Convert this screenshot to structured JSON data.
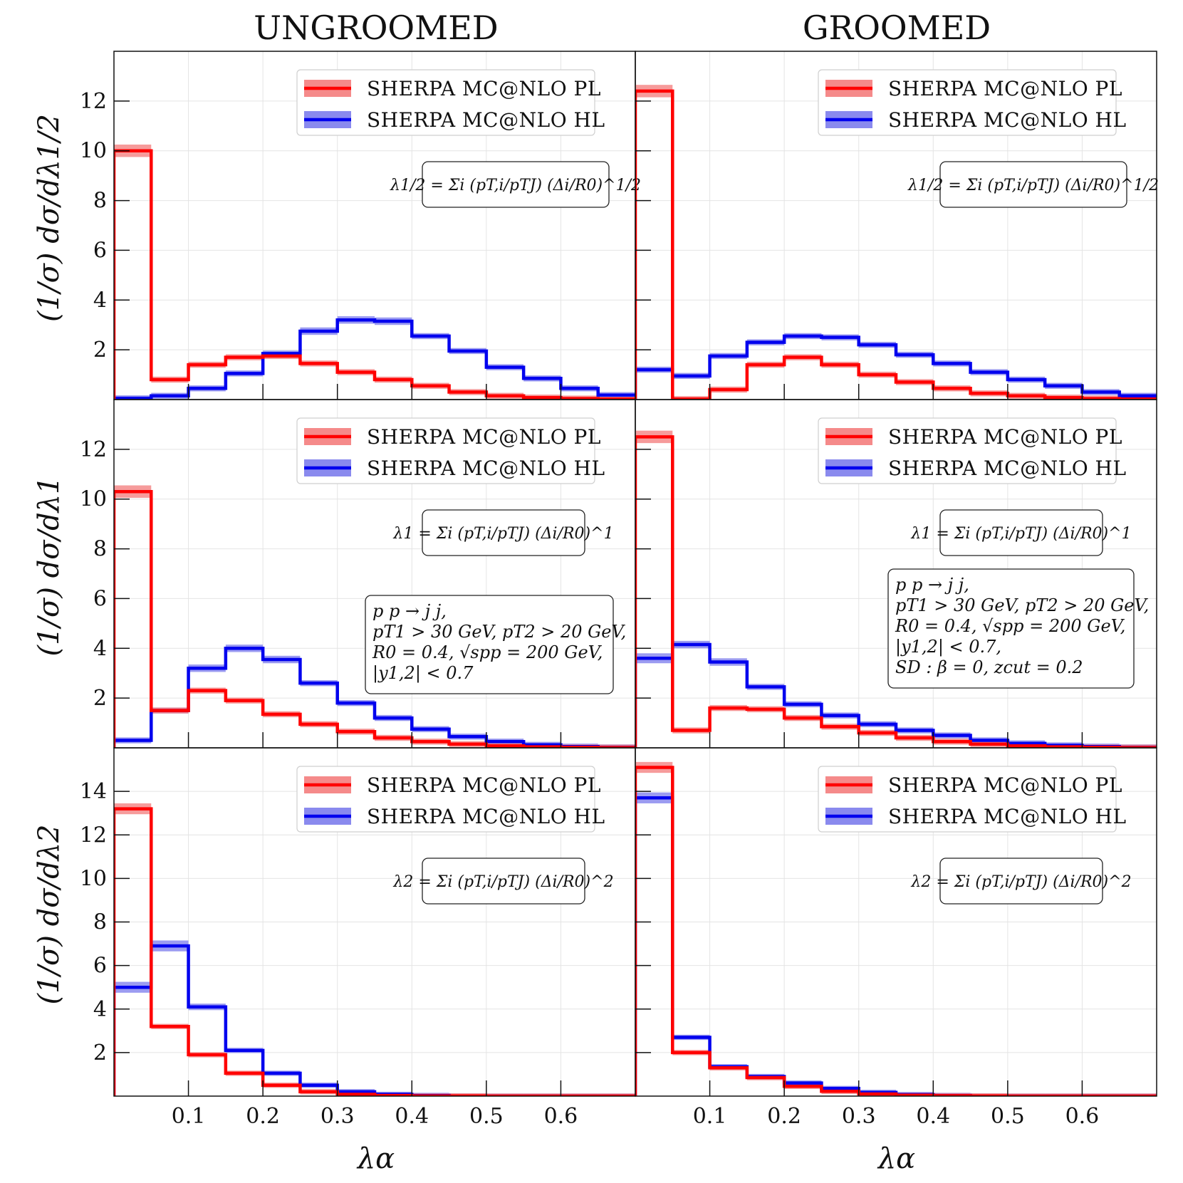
{
  "figure": {
    "column_titles": [
      "UNGROOMED",
      "GROOMED"
    ],
    "x_label": "λα",
    "row_y_labels": [
      "(1/σ) dσ/dλ1/2",
      "(1/σ) dσ/dλ1",
      "(1/σ) dσ/dλ2"
    ],
    "legend": [
      "SHERPA MC@NLO PL",
      "SHERPA MC@NLO HL"
    ],
    "formulas": [
      "λ1/2 = Σi (pT,i/pTJ) (Δi/R0)^1/2",
      "λ1 = Σi (pT,i/pTJ) (Δi/R0)^1",
      "λ2 = Σi (pT,i/pTJ) (Δi/R0)^2"
    ],
    "ungroomed_info": [
      "p p → j j,",
      "pT1 > 30 GeV,  pT2 > 20 GeV,",
      "R0 = 0.4, √spp = 200 GeV,",
      "|y1,2| < 0.7"
    ],
    "groomed_info": [
      "p p → j j,",
      "pT1 > 30 GeV,  pT2 > 20 GeV,",
      "R0 = 0.4, √spp = 200 GeV,",
      "|y1,2| < 0.7,",
      "SD : β = 0, zcut = 0.2"
    ],
    "colors": {
      "PL": "#ff0000",
      "HL": "#0000ee",
      "PL_band": "#f58a8a",
      "HL_band": "#8a8aee"
    }
  },
  "chart_data": [
    {
      "type": "histogram",
      "panel": "lambda_half_ungroomed",
      "x_edges": [
        0,
        0.05,
        0.1,
        0.15,
        0.2,
        0.25,
        0.3,
        0.35,
        0.4,
        0.45,
        0.5,
        0.55,
        0.6,
        0.65,
        0.7
      ],
      "xlim": [
        0,
        0.7
      ],
      "ylim": [
        0,
        14
      ],
      "yticks": [
        2,
        4,
        6,
        8,
        10,
        12
      ],
      "xticks": [
        0.1,
        0.2,
        0.3,
        0.4,
        0.5,
        0.6
      ],
      "series": [
        {
          "name": "SHERPA MC@NLO PL",
          "values": [
            10.0,
            0.8,
            1.4,
            1.7,
            1.75,
            1.45,
            1.1,
            0.8,
            0.55,
            0.3,
            0.15,
            0.08,
            0.04,
            0.02
          ],
          "band": [
            0.25,
            0.05,
            0.08,
            0.08,
            0.08,
            0.08,
            0.06,
            0.05,
            0.04,
            0.03,
            0.02,
            0.01,
            0.01,
            0.01
          ]
        },
        {
          "name": "SHERPA MC@NLO HL",
          "values": [
            0.05,
            0.15,
            0.45,
            1.05,
            1.85,
            2.75,
            3.2,
            3.15,
            2.55,
            1.95,
            1.3,
            0.85,
            0.45,
            0.18
          ],
          "band": [
            0.02,
            0.03,
            0.05,
            0.1,
            0.12,
            0.15,
            0.15,
            0.15,
            0.12,
            0.08,
            0.06,
            0.04,
            0.03,
            0.02
          ]
        }
      ]
    },
    {
      "type": "histogram",
      "panel": "lambda_half_groomed",
      "x_edges": [
        0,
        0.05,
        0.1,
        0.15,
        0.2,
        0.25,
        0.3,
        0.35,
        0.4,
        0.45,
        0.5,
        0.55,
        0.6,
        0.65,
        0.7
      ],
      "xlim": [
        0,
        0.7
      ],
      "ylim": [
        0,
        14
      ],
      "yticks": [
        2,
        4,
        6,
        8,
        10,
        12
      ],
      "xticks": [
        0.1,
        0.2,
        0.3,
        0.4,
        0.5,
        0.6
      ],
      "series": [
        {
          "name": "SHERPA MC@NLO PL",
          "values": [
            12.4,
            0.02,
            0.4,
            1.4,
            1.7,
            1.4,
            1.0,
            0.7,
            0.45,
            0.25,
            0.15,
            0.08,
            0.04,
            0.02
          ],
          "band": [
            0.25,
            0.01,
            0.04,
            0.07,
            0.08,
            0.07,
            0.05,
            0.04,
            0.03,
            0.02,
            0.01,
            0.01,
            0.01,
            0.01
          ]
        },
        {
          "name": "SHERPA MC@NLO HL",
          "values": [
            1.2,
            0.95,
            1.75,
            2.3,
            2.55,
            2.5,
            2.2,
            1.8,
            1.45,
            1.1,
            0.8,
            0.55,
            0.3,
            0.15
          ],
          "band": [
            0.1,
            0.05,
            0.08,
            0.1,
            0.1,
            0.1,
            0.1,
            0.08,
            0.06,
            0.05,
            0.04,
            0.03,
            0.02,
            0.02
          ]
        }
      ]
    },
    {
      "type": "histogram",
      "panel": "lambda_1_ungroomed",
      "x_edges": [
        0,
        0.05,
        0.1,
        0.15,
        0.2,
        0.25,
        0.3,
        0.35,
        0.4,
        0.45,
        0.5,
        0.55,
        0.6,
        0.65,
        0.7
      ],
      "xlim": [
        0,
        0.7
      ],
      "ylim": [
        0,
        14
      ],
      "yticks": [
        2,
        4,
        6,
        8,
        10,
        12
      ],
      "xticks": [
        0.1,
        0.2,
        0.3,
        0.4,
        0.5,
        0.6
      ],
      "series": [
        {
          "name": "SHERPA MC@NLO PL",
          "values": [
            10.3,
            1.5,
            2.3,
            1.9,
            1.35,
            0.95,
            0.65,
            0.4,
            0.25,
            0.15,
            0.08,
            0.04,
            0.02,
            0.01
          ],
          "band": [
            0.25,
            0.06,
            0.08,
            0.08,
            0.07,
            0.05,
            0.04,
            0.03,
            0.02,
            0.01,
            0.01,
            0.01,
            0.01,
            0.01
          ]
        },
        {
          "name": "SHERPA MC@NLO HL",
          "values": [
            0.3,
            1.5,
            3.2,
            4.0,
            3.55,
            2.6,
            1.8,
            1.2,
            0.75,
            0.45,
            0.25,
            0.12,
            0.05,
            0.02
          ],
          "band": [
            0.03,
            0.1,
            0.15,
            0.15,
            0.15,
            0.12,
            0.08,
            0.06,
            0.04,
            0.03,
            0.02,
            0.01,
            0.01,
            0.01
          ]
        }
      ]
    },
    {
      "type": "histogram",
      "panel": "lambda_1_groomed",
      "x_edges": [
        0,
        0.05,
        0.1,
        0.15,
        0.2,
        0.25,
        0.3,
        0.35,
        0.4,
        0.45,
        0.5,
        0.55,
        0.6,
        0.65,
        0.7
      ],
      "xlim": [
        0,
        0.7
      ],
      "ylim": [
        0,
        14
      ],
      "yticks": [
        2,
        4,
        6,
        8,
        10,
        12
      ],
      "xticks": [
        0.1,
        0.2,
        0.3,
        0.4,
        0.5,
        0.6
      ],
      "series": [
        {
          "name": "SHERPA MC@NLO PL",
          "values": [
            12.5,
            0.7,
            1.6,
            1.55,
            1.2,
            0.85,
            0.6,
            0.4,
            0.25,
            0.15,
            0.08,
            0.04,
            0.02,
            0.01
          ],
          "band": [
            0.25,
            0.04,
            0.07,
            0.07,
            0.06,
            0.05,
            0.04,
            0.03,
            0.02,
            0.01,
            0.01,
            0.01,
            0.01,
            0.01
          ]
        },
        {
          "name": "SHERPA MC@NLO HL",
          "values": [
            3.6,
            4.15,
            3.45,
            2.45,
            1.75,
            1.3,
            0.95,
            0.7,
            0.5,
            0.3,
            0.18,
            0.1,
            0.05,
            0.02
          ],
          "band": [
            0.2,
            0.15,
            0.15,
            0.12,
            0.1,
            0.08,
            0.06,
            0.05,
            0.04,
            0.03,
            0.02,
            0.01,
            0.01,
            0.01
          ]
        }
      ]
    },
    {
      "type": "histogram",
      "panel": "lambda_2_ungroomed",
      "x_edges": [
        0,
        0.05,
        0.1,
        0.15,
        0.2,
        0.25,
        0.3,
        0.35,
        0.4,
        0.45,
        0.5,
        0.55,
        0.6,
        0.65,
        0.7
      ],
      "xlim": [
        0,
        0.7
      ],
      "ylim": [
        0,
        16
      ],
      "yticks": [
        2,
        4,
        6,
        8,
        10,
        12,
        14
      ],
      "xticks": [
        0.1,
        0.2,
        0.3,
        0.4,
        0.5,
        0.6
      ],
      "series": [
        {
          "name": "SHERPA MC@NLO PL",
          "values": [
            13.2,
            3.2,
            1.9,
            1.05,
            0.5,
            0.2,
            0.08,
            0.03,
            0.01,
            0.01,
            0.0,
            0.0,
            0.0,
            0.0
          ],
          "band": [
            0.25,
            0.1,
            0.08,
            0.06,
            0.04,
            0.02,
            0.01,
            0.01,
            0.0,
            0.0,
            0.0,
            0.0,
            0.0,
            0.0
          ]
        },
        {
          "name": "SHERPA MC@NLO HL",
          "values": [
            5.0,
            6.9,
            4.1,
            2.1,
            1.05,
            0.5,
            0.2,
            0.08,
            0.03,
            0.01,
            0.0,
            0.0,
            0.0,
            0.0
          ],
          "band": [
            0.25,
            0.25,
            0.15,
            0.1,
            0.06,
            0.04,
            0.02,
            0.01,
            0.01,
            0.0,
            0.0,
            0.0,
            0.0,
            0.0
          ]
        }
      ]
    },
    {
      "type": "histogram",
      "panel": "lambda_2_groomed",
      "x_edges": [
        0,
        0.05,
        0.1,
        0.15,
        0.2,
        0.25,
        0.3,
        0.35,
        0.4,
        0.45,
        0.5,
        0.55,
        0.6,
        0.65,
        0.7
      ],
      "xlim": [
        0,
        0.7
      ],
      "ylim": [
        0,
        16
      ],
      "yticks": [
        2,
        4,
        6,
        8,
        10,
        12,
        14
      ],
      "xticks": [
        0.1,
        0.2,
        0.3,
        0.4,
        0.5,
        0.6
      ],
      "series": [
        {
          "name": "SHERPA MC@NLO PL",
          "values": [
            15.1,
            2.0,
            1.3,
            0.85,
            0.45,
            0.22,
            0.1,
            0.04,
            0.02,
            0.01,
            0.0,
            0.0,
            0.0,
            0.0
          ],
          "band": [
            0.25,
            0.08,
            0.06,
            0.05,
            0.03,
            0.02,
            0.01,
            0.01,
            0.0,
            0.0,
            0.0,
            0.0,
            0.0,
            0.0
          ]
        },
        {
          "name": "SHERPA MC@NLO HL",
          "values": [
            13.7,
            2.7,
            1.35,
            0.9,
            0.6,
            0.35,
            0.17,
            0.07,
            0.03,
            0.01,
            0.0,
            0.0,
            0.0,
            0.0
          ],
          "band": [
            0.25,
            0.1,
            0.07,
            0.05,
            0.04,
            0.03,
            0.02,
            0.01,
            0.01,
            0.0,
            0.0,
            0.0,
            0.0,
            0.0
          ]
        }
      ]
    }
  ]
}
